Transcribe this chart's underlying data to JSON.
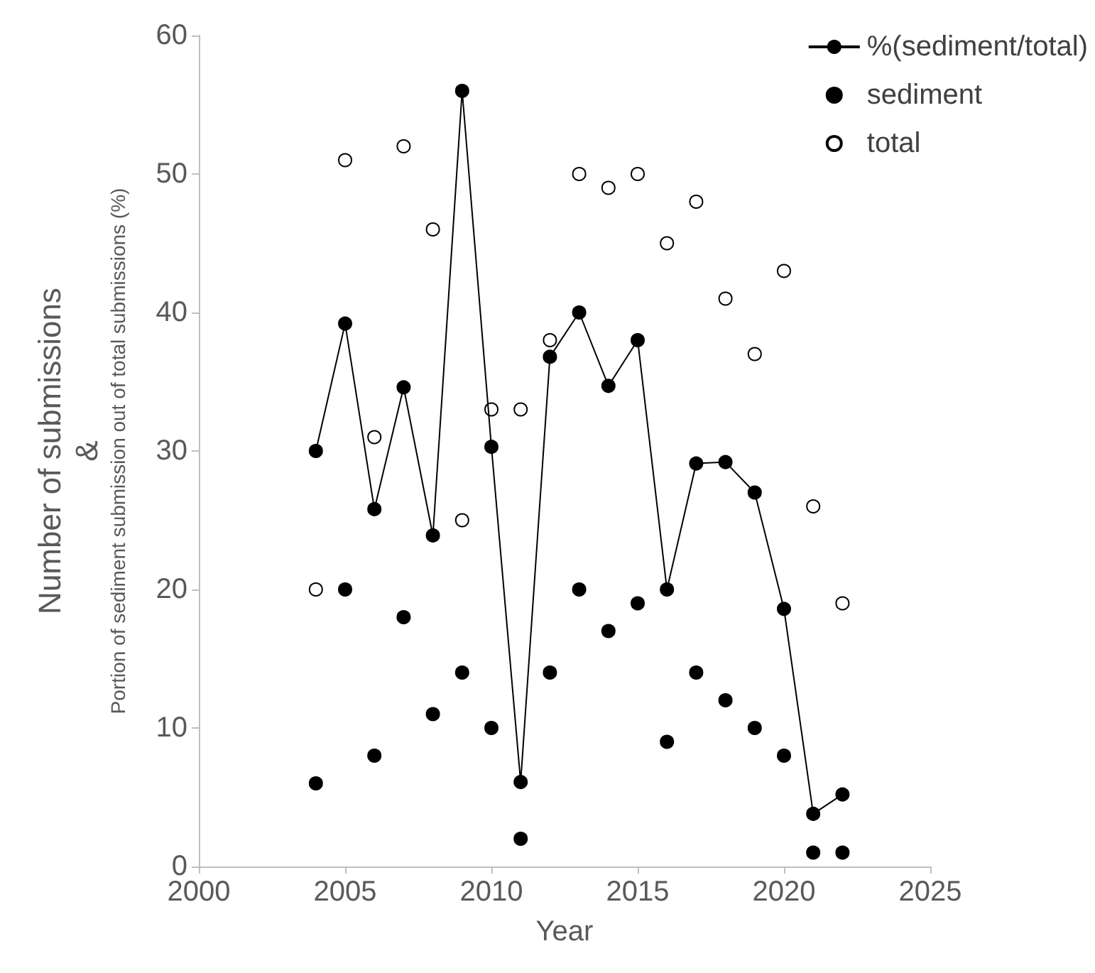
{
  "chart_data": {
    "type": "line",
    "xlabel": "Year",
    "ylabel": "Number of submissions\n&\nPortion of sediment submission out of total submissions (%)",
    "x": [
      2004,
      2005,
      2006,
      2007,
      2008,
      2009,
      2010,
      2011,
      2012,
      2013,
      2014,
      2015,
      2016,
      2017,
      2018,
      2019,
      2020,
      2021,
      2022
    ],
    "series": [
      {
        "name": "%(sediment/total)",
        "type": "line",
        "color": "#000000",
        "marker": "circle",
        "line_style": "solid",
        "values": [
          30.0,
          39.2,
          25.8,
          34.6,
          23.9,
          56.0,
          30.3,
          6.1,
          36.8,
          40.0,
          34.7,
          38.0,
          20.0,
          29.1,
          29.2,
          27.0,
          18.6,
          3.8,
          5.2
        ]
      },
      {
        "name": "sediment",
        "type": "scatter",
        "color": "#000000",
        "marker": "circle",
        "values": [
          6,
          20,
          8,
          18,
          11,
          14,
          10,
          2,
          14,
          20,
          17,
          19,
          9,
          14,
          12,
          10,
          8,
          1,
          1
        ]
      },
      {
        "name": "total",
        "type": "scatter",
        "color": "#ffffff",
        "marker": "circle",
        "values": [
          20,
          51,
          31,
          52,
          46,
          25,
          33,
          33,
          38,
          50,
          49,
          50,
          45,
          48,
          41,
          37,
          43,
          26,
          19
        ]
      }
    ],
    "xlim": [
      2000,
      2025
    ],
    "xticks": [
      2000,
      2005,
      2010,
      2015,
      2020,
      2025
    ],
    "ylim": [
      0,
      60
    ],
    "yticks": [
      0,
      10,
      20,
      30,
      40,
      50,
      60
    ],
    "grid": false,
    "legend": "top right"
  }
}
